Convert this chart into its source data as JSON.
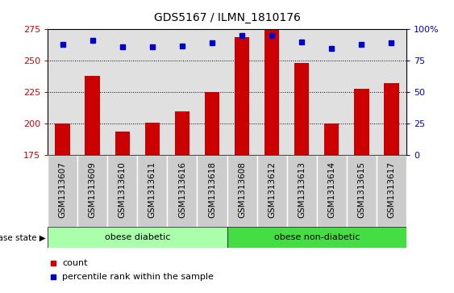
{
  "title": "GDS5167 / ILMN_1810176",
  "samples": [
    "GSM1313607",
    "GSM1313609",
    "GSM1313610",
    "GSM1313611",
    "GSM1313616",
    "GSM1313618",
    "GSM1313608",
    "GSM1313612",
    "GSM1313613",
    "GSM1313614",
    "GSM1313615",
    "GSM1313617"
  ],
  "counts": [
    200,
    238,
    194,
    201,
    210,
    225,
    269,
    275,
    248,
    200,
    228,
    232
  ],
  "percentiles": [
    88,
    91,
    86,
    86,
    87,
    89,
    95,
    95,
    90,
    85,
    88,
    89
  ],
  "bar_color": "#cc0000",
  "dot_color": "#0000cc",
  "ylim_left": [
    175,
    275
  ],
  "ylim_right": [
    0,
    100
  ],
  "yticks_left": [
    175,
    200,
    225,
    250,
    275
  ],
  "yticks_right": [
    0,
    25,
    50,
    75,
    100
  ],
  "groups": [
    {
      "label": "obese diabetic",
      "start": 0,
      "end": 6,
      "color": "#aaffaa"
    },
    {
      "label": "obese non-diabetic",
      "start": 6,
      "end": 12,
      "color": "#44dd44"
    }
  ],
  "group_label": "disease state",
  "legend_count_label": "count",
  "legend_pct_label": "percentile rank within the sample",
  "dotted_yticks": [
    200,
    225,
    250
  ],
  "bar_width": 0.5,
  "plot_bg_color": "#e0e0e0",
  "label_bg_color": "#cccccc",
  "tick_label_fontsize": 7.5,
  "title_fontsize": 10
}
